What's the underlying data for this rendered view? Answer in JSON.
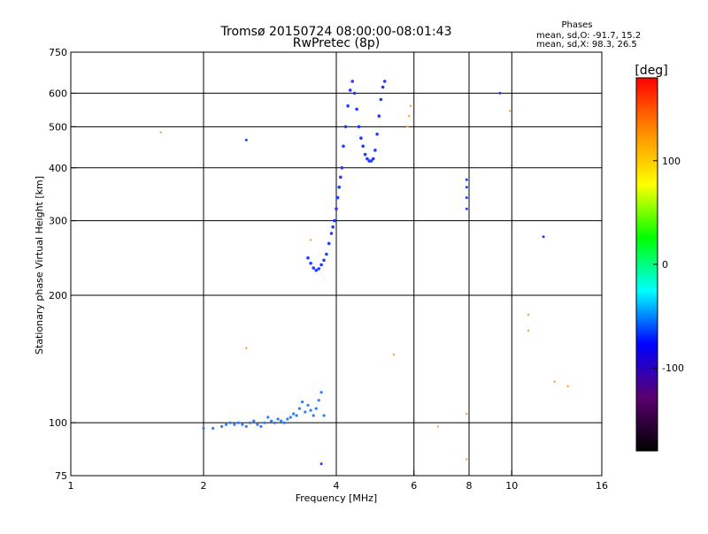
{
  "header": {
    "title_line1": "Tromsø 20150724 08:00:00-08:01:43",
    "title_line2": "RwPretec (8p)"
  },
  "stats": {
    "heading": "Phases",
    "line1": "mean, sd,O: -91.7, 15.2",
    "line2": "mean, sd,X:  98.3, 26.5"
  },
  "colorbar": {
    "unit_label": "[deg]",
    "range": [
      -180,
      180
    ],
    "ticks": [
      100,
      0,
      -100
    ],
    "gradient_colors": [
      "#ff0000",
      "#ff8c00",
      "#ffff00",
      "#00ff00",
      "#00ffff",
      "#0000ff",
      "#5a006e",
      "#000000"
    ]
  },
  "chart_data": {
    "type": "scatter",
    "xlabel": "Frequency [MHz]",
    "ylabel": "Stationary phase Virtual Height [km]",
    "x_scale": "log",
    "y_scale": "log",
    "xlim": [
      1,
      16
    ],
    "ylim": [
      75,
      750
    ],
    "x_ticks": [
      1,
      2,
      4,
      6,
      8,
      10,
      16
    ],
    "y_ticks": [
      75,
      100,
      200,
      300,
      400,
      500,
      600,
      750
    ],
    "grid": true,
    "point_colors": {
      "O_mode": "#1e3cff",
      "X_mode": "#ff9a2e",
      "low_freq_band": "#2b7fff"
    },
    "o_trace_low": [
      [
        2.0,
        97
      ],
      [
        2.1,
        97
      ],
      [
        2.2,
        98
      ],
      [
        2.25,
        99
      ],
      [
        2.3,
        100
      ],
      [
        2.35,
        99
      ],
      [
        2.4,
        100
      ],
      [
        2.45,
        99
      ],
      [
        2.5,
        98
      ],
      [
        2.55,
        100
      ],
      [
        2.6,
        101
      ],
      [
        2.65,
        99
      ],
      [
        2.7,
        98
      ],
      [
        2.75,
        100
      ],
      [
        2.8,
        103
      ],
      [
        2.85,
        101
      ],
      [
        2.9,
        100
      ],
      [
        2.95,
        102
      ],
      [
        3.0,
        101
      ],
      [
        3.05,
        100
      ],
      [
        3.1,
        102
      ],
      [
        3.15,
        103
      ],
      [
        3.2,
        105
      ],
      [
        3.25,
        104
      ],
      [
        3.3,
        108
      ],
      [
        3.35,
        112
      ],
      [
        3.4,
        106
      ],
      [
        3.45,
        110
      ],
      [
        3.5,
        107
      ],
      [
        3.55,
        104
      ],
      [
        3.6,
        108
      ],
      [
        3.65,
        113
      ],
      [
        3.7,
        118
      ],
      [
        3.75,
        104
      ]
    ],
    "o_trace_f": [
      [
        3.45,
        245
      ],
      [
        3.5,
        238
      ],
      [
        3.55,
        232
      ],
      [
        3.6,
        229
      ],
      [
        3.65,
        231
      ],
      [
        3.7,
        236
      ],
      [
        3.75,
        242
      ],
      [
        3.8,
        250
      ],
      [
        3.85,
        265
      ],
      [
        3.9,
        280
      ],
      [
        3.93,
        290
      ],
      [
        3.96,
        300
      ],
      [
        4.0,
        320
      ],
      [
        4.03,
        340
      ],
      [
        4.06,
        360
      ],
      [
        4.09,
        380
      ],
      [
        4.12,
        400
      ],
      [
        4.15,
        450
      ],
      [
        4.2,
        500
      ],
      [
        4.25,
        560
      ],
      [
        4.3,
        610
      ],
      [
        4.35,
        640
      ],
      [
        4.4,
        600
      ],
      [
        4.45,
        550
      ],
      [
        4.5,
        500
      ],
      [
        4.55,
        470
      ],
      [
        4.6,
        450
      ],
      [
        4.65,
        430
      ],
      [
        4.7,
        420
      ],
      [
        4.75,
        415
      ],
      [
        4.8,
        415
      ],
      [
        4.85,
        420
      ],
      [
        4.9,
        440
      ],
      [
        4.95,
        480
      ],
      [
        5.0,
        530
      ],
      [
        5.05,
        580
      ],
      [
        5.1,
        620
      ],
      [
        5.15,
        640
      ]
    ],
    "o_scattered": [
      [
        3.7,
        80
      ],
      [
        7.9,
        320
      ],
      [
        7.9,
        340
      ],
      [
        7.9,
        360
      ],
      [
        7.9,
        375
      ],
      [
        9.4,
        600
      ],
      [
        11.8,
        275
      ],
      [
        2.5,
        465
      ]
    ],
    "x_scattered": [
      [
        3.5,
        270
      ],
      [
        1.6,
        485
      ],
      [
        2.5,
        150
      ],
      [
        5.4,
        145
      ],
      [
        5.8,
        500
      ],
      [
        5.85,
        530
      ],
      [
        5.9,
        560
      ],
      [
        6.8,
        98
      ],
      [
        7.9,
        105
      ],
      [
        7.9,
        82
      ],
      [
        9.9,
        545
      ],
      [
        10.9,
        180
      ],
      [
        10.9,
        165
      ],
      [
        12.5,
        125
      ],
      [
        13.4,
        122
      ]
    ]
  }
}
